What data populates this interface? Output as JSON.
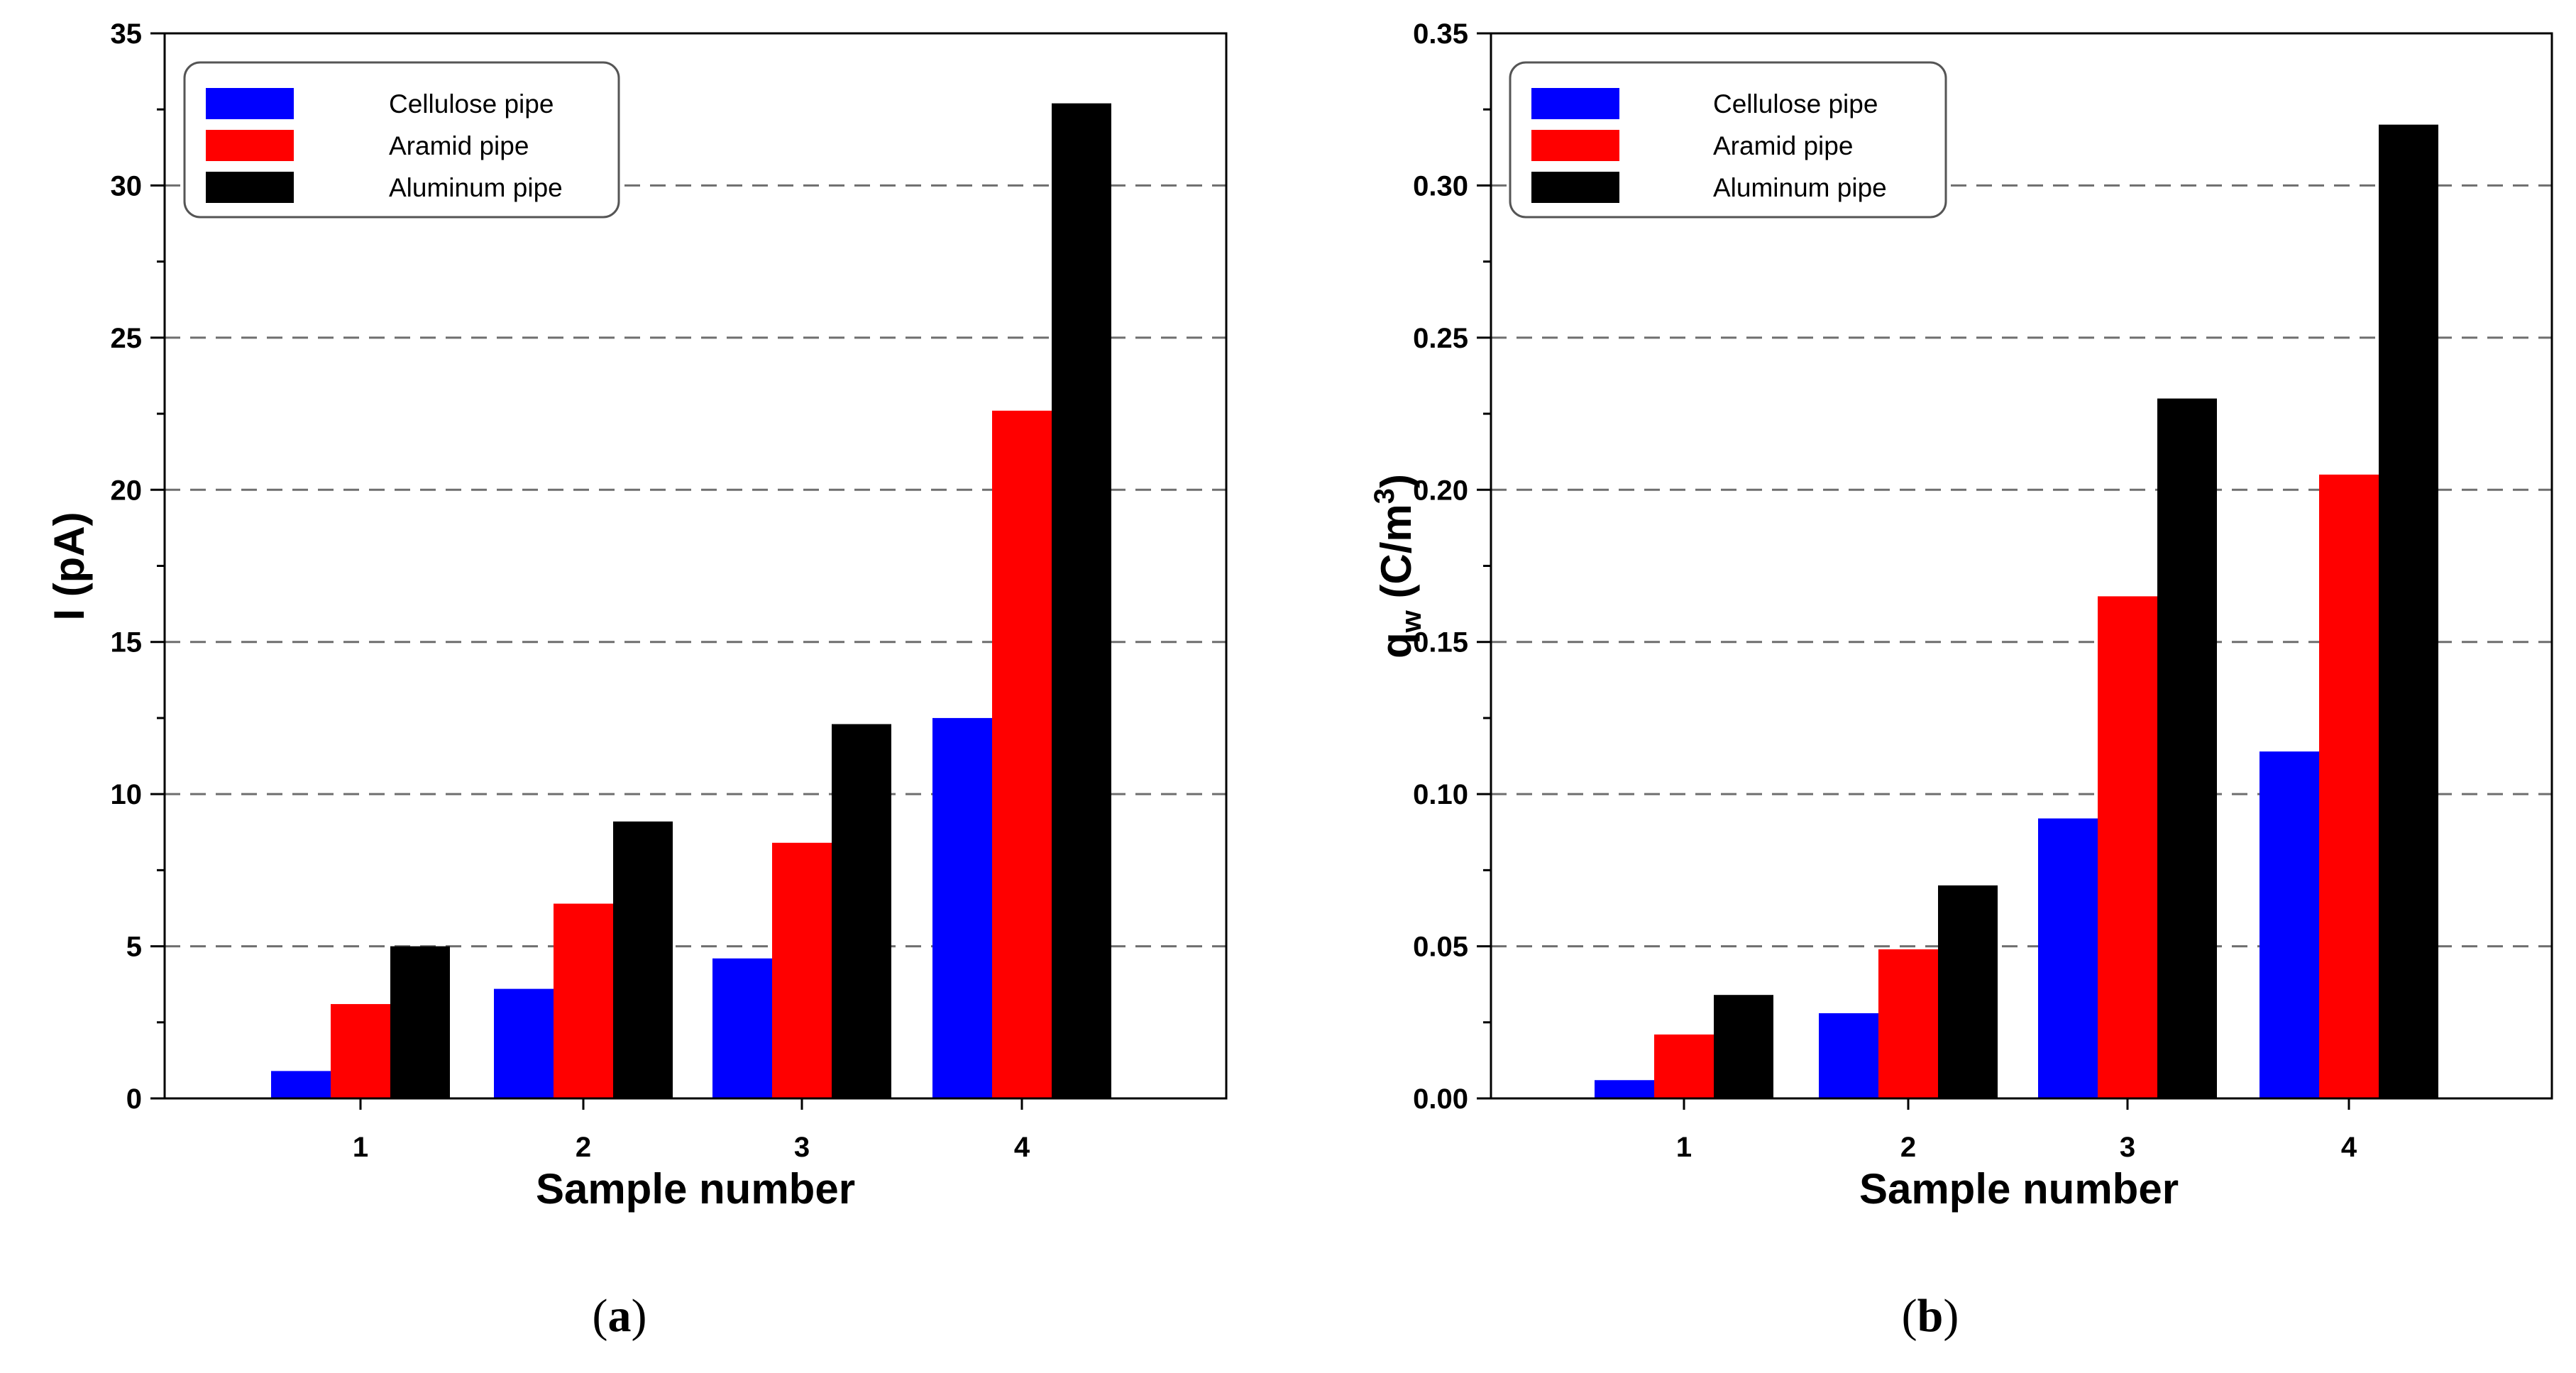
{
  "chart_data": [
    {
      "type": "bar",
      "panel_label": "a",
      "categories": [
        "1",
        "2",
        "3",
        "4"
      ],
      "series": [
        {
          "name": "Cellulose pipe",
          "color": "#0000ff",
          "values": [
            0.9,
            3.6,
            4.6,
            12.5
          ]
        },
        {
          "name": "Aramid pipe",
          "color": "#ff0000",
          "values": [
            3.1,
            6.4,
            8.4,
            22.6
          ]
        },
        {
          "name": "Aluminum pipe",
          "color": "#000000",
          "values": [
            5.0,
            9.1,
            12.3,
            32.7
          ]
        }
      ],
      "xlabel": "Sample number",
      "ylabel": "I (pA)",
      "ylim": [
        0,
        35
      ],
      "yticks": [
        0,
        5,
        10,
        15,
        20,
        25,
        30,
        35
      ],
      "ytick_labels": [
        "0",
        "5",
        "10",
        "15",
        "20",
        "25",
        "30",
        "35"
      ],
      "grid": "horizontal dashed",
      "legend_position": "top-left"
    },
    {
      "type": "bar",
      "panel_label": "b",
      "categories": [
        "1",
        "2",
        "3",
        "4"
      ],
      "series": [
        {
          "name": "Cellulose pipe",
          "color": "#0000ff",
          "values": [
            0.006,
            0.028,
            0.092,
            0.114
          ]
        },
        {
          "name": "Aramid pipe",
          "color": "#ff0000",
          "values": [
            0.021,
            0.049,
            0.165,
            0.205
          ]
        },
        {
          "name": "Aluminum pipe",
          "color": "#000000",
          "values": [
            0.034,
            0.07,
            0.23,
            0.32
          ]
        }
      ],
      "xlabel": "Sample number",
      "ylabel": {
        "base": "q",
        "subscript": "w",
        "unit_open": " (C/m",
        "superscript": "3",
        "unit_close": ")"
      },
      "ylim": [
        0,
        0.35
      ],
      "yticks": [
        0,
        0.05,
        0.1,
        0.15,
        0.2,
        0.25,
        0.3,
        0.35
      ],
      "ytick_labels": [
        "0.00",
        "0.05",
        "0.10",
        "0.15",
        "0.20",
        "0.25",
        "0.30",
        "0.35"
      ],
      "grid": "horizontal dashed",
      "legend_position": "top-left"
    }
  ]
}
